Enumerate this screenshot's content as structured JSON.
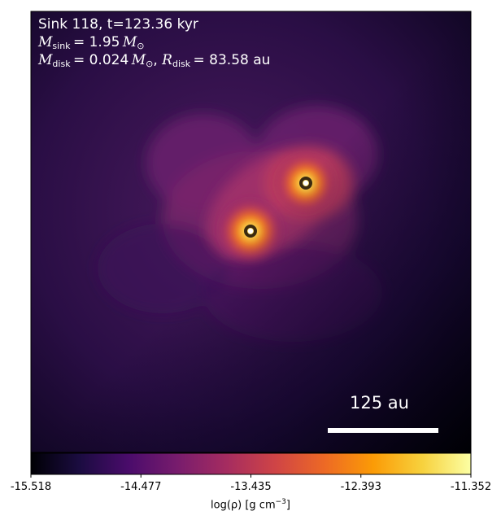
{
  "annotation": {
    "sink_line": "Sink 118, t=123.36 kyr",
    "msink_sub": "sink",
    "msink_value": "= 1.95",
    "mdisk_sub": "disk",
    "mdisk_value": "= 0.024",
    "rdisk_sub": "disk",
    "rdisk_value": "= 83.58 au"
  },
  "scale_bar": {
    "label": "125 au"
  },
  "colorbar": {
    "ticks": [
      "-15.518",
      "-14.477",
      "-13.435",
      "-12.393",
      "-11.352"
    ],
    "label_prefix": "log(ρ) [g cm",
    "label_exp": "−3",
    "label_suffix": "]",
    "colormap": "inferno",
    "colors": [
      "#000004",
      "#1b0c41",
      "#4a0c6b",
      "#781c6d",
      "#a52c60",
      "#cf4446",
      "#ed6925",
      "#fb9b06",
      "#f7d13d",
      "#fcffa4"
    ]
  },
  "sinks": [
    {
      "name": "sink-upper",
      "edge": "#ffffff",
      "ring": "#3a2a10"
    },
    {
      "name": "sink-lower",
      "edge": "#ffffff",
      "ring": "#3a2a10"
    }
  ]
}
